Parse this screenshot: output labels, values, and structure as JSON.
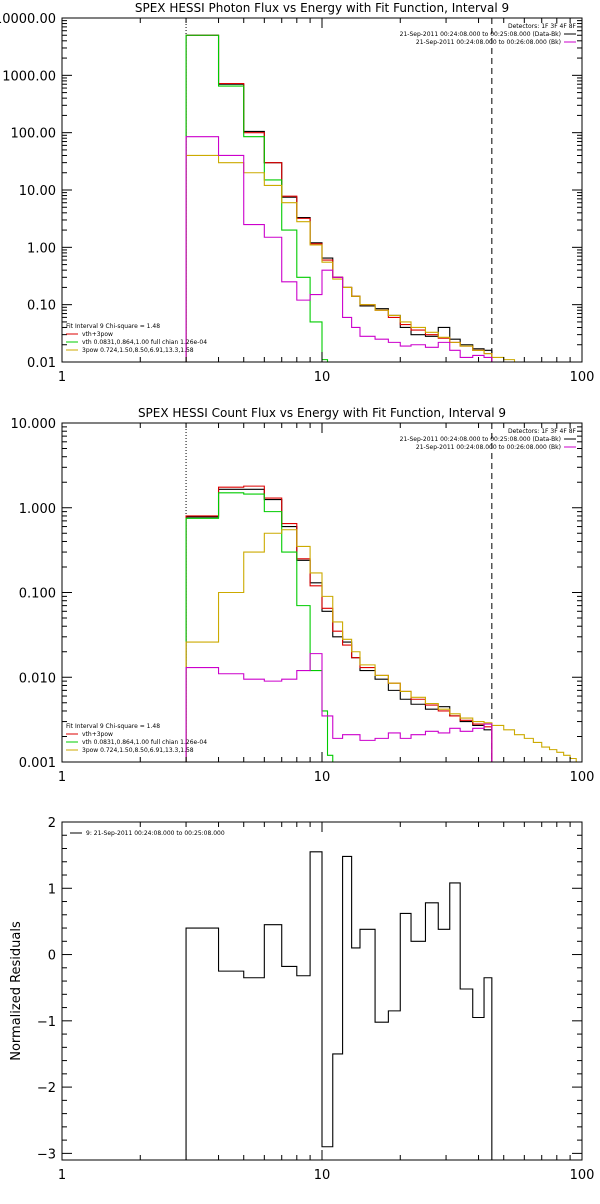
{
  "chart_data": [
    {
      "type": "line",
      "title": "SPEX HESSI Photon Flux vs Energy with Fit Function, Interval 9",
      "xlabel": "",
      "ylabel": "",
      "xscale": "log",
      "yscale": "log",
      "xlim": [
        1,
        100
      ],
      "ylim": [
        0.01,
        10000
      ],
      "xtick_labels": [
        {
          "v": 1,
          "t": "1"
        },
        {
          "v": 10,
          "t": "10"
        },
        {
          "v": 100,
          "t": "100"
        }
      ],
      "ytick_labels": [
        {
          "v": 0.01,
          "t": "0.01"
        },
        {
          "v": 0.1,
          "t": "0.10"
        },
        {
          "v": 1,
          "t": "1.00"
        },
        {
          "v": 10,
          "t": "10.00"
        },
        {
          "v": 100,
          "t": "100.00"
        },
        {
          "v": 1000,
          "t": "1000.00"
        },
        {
          "v": 10000,
          "t": "10000.00"
        }
      ],
      "vlines": [
        {
          "x": 3,
          "style": "dotted"
        },
        {
          "x": 45,
          "style": "dashed"
        }
      ],
      "legend_top": {
        "position": "top-right",
        "header": "Detectors: 1F 3F 4F 8F",
        "entries": [
          {
            "text": "21-Sep-2011 00:24:08.000 to 00:25:08.000 (Data-Bk)",
            "color": "#000000"
          },
          {
            "text": "21-Sep-2011 00:24:08.000 to 00:26:08.000 (Bk)",
            "color": "#cc00cc"
          }
        ]
      },
      "legend_bottom": {
        "position": "bottom-left",
        "header": "Fit Interval 9   Chi-square = 1.48",
        "entries": [
          {
            "text": "vth+3pow",
            "color": "#dd0000"
          },
          {
            "text": "vth 0.0831,0.864,1.00  full chian 1.26e-04",
            "color": "#00cc00"
          },
          {
            "text": "3pow 0.724,1.50,8.50,6.91,13.3,1.58",
            "color": "#ccaa00"
          }
        ]
      },
      "series": [
        {
          "key": "data",
          "color": "#000000",
          "edges": [
            3,
            4,
            5,
            6,
            7,
            8,
            9,
            10,
            11,
            12,
            13,
            14,
            16,
            18,
            20,
            22,
            25,
            28,
            31,
            34,
            38,
            42,
            45
          ],
          "values": [
            5000,
            700,
            105,
            30,
            7.5,
            3.3,
            1.2,
            0.65,
            0.3,
            0.2,
            0.14,
            0.095,
            0.085,
            0.065,
            0.04,
            0.03,
            0.028,
            0.04,
            0.025,
            0.02,
            0.017,
            0.016
          ]
        },
        {
          "key": "model-total",
          "color": "#dd0000",
          "edges": [
            3,
            4,
            5,
            6,
            7,
            8,
            9,
            10,
            11,
            12,
            13,
            14,
            16,
            18,
            20,
            22,
            25,
            28,
            31,
            34,
            38,
            42,
            45
          ],
          "values": [
            5000,
            720,
            100,
            30,
            7.8,
            3.2,
            1.15,
            0.6,
            0.3,
            0.2,
            0.14,
            0.1,
            0.08,
            0.06,
            0.045,
            0.036,
            0.03,
            0.026,
            0.022,
            0.019,
            0.016,
            0.014
          ]
        },
        {
          "key": "model-thermal",
          "color": "#00cc00",
          "edges": [
            3,
            4,
            5,
            6,
            7,
            8,
            9,
            10,
            10.5
          ],
          "values": [
            5000,
            650,
            85,
            15,
            2,
            0.3,
            0.05,
            0.011
          ]
        },
        {
          "key": "model-powerlaw",
          "color": "#ccaa00",
          "edges": [
            3,
            4,
            5,
            6,
            7,
            8,
            9,
            10,
            11,
            12,
            13,
            14,
            16,
            18,
            20,
            22,
            25,
            28,
            31,
            34,
            38,
            42,
            45,
            50,
            55,
            60,
            65
          ],
          "values": [
            40,
            30,
            20,
            12,
            6,
            2.8,
            1.1,
            0.55,
            0.28,
            0.2,
            0.14,
            0.1,
            0.08,
            0.065,
            0.05,
            0.04,
            0.033,
            0.027,
            0.022,
            0.019,
            0.016,
            0.014,
            0.012,
            0.011,
            0.01,
            0.009
          ]
        },
        {
          "key": "background",
          "color": "#cc00cc",
          "edges": [
            3,
            4,
            5,
            6,
            7,
            8,
            9,
            10,
            11,
            12,
            13,
            14,
            16,
            18,
            20,
            22,
            25,
            28,
            31,
            34,
            38,
            42,
            45
          ],
          "values": [
            85,
            40,
            2.5,
            1.5,
            0.25,
            0.12,
            0.15,
            0.4,
            0.3,
            0.06,
            0.04,
            0.028,
            0.025,
            0.022,
            0.019,
            0.02,
            0.018,
            0.022,
            0.016,
            0.012,
            0.013,
            0.012
          ]
        }
      ]
    },
    {
      "type": "line",
      "title": "SPEX HESSI Count Flux vs Energy with Fit Function, Interval 9",
      "xlabel": "",
      "ylabel": "",
      "xscale": "log",
      "yscale": "log",
      "xlim": [
        1,
        100
      ],
      "ylim": [
        0.001,
        10
      ],
      "xtick_labels": [
        {
          "v": 1,
          "t": "1"
        },
        {
          "v": 10,
          "t": "10"
        },
        {
          "v": 100,
          "t": "100"
        }
      ],
      "ytick_labels": [
        {
          "v": 0.001,
          "t": "0.001"
        },
        {
          "v": 0.01,
          "t": "0.010"
        },
        {
          "v": 0.1,
          "t": "0.100"
        },
        {
          "v": 1,
          "t": "1.000"
        },
        {
          "v": 10,
          "t": "10.000"
        }
      ],
      "vlines": [
        {
          "x": 3,
          "style": "dotted"
        },
        {
          "x": 45,
          "style": "dashed"
        }
      ],
      "legend_top": {
        "position": "top-right",
        "header": "Detectors: 1F 3F 4F 8F",
        "entries": [
          {
            "text": "21-Sep-2011 00:24:08.000 to 00:25:08.000 (Data-Bk)",
            "color": "#000000"
          },
          {
            "text": "21-Sep-2011 00:24:08.000 to 00:26:08.000 (Bk)",
            "color": "#cc00cc"
          }
        ]
      },
      "legend_bottom": {
        "position": "bottom-left",
        "header": "Fit Interval 9   Chi-square = 1.48",
        "entries": [
          {
            "text": "vth+3pow",
            "color": "#dd0000"
          },
          {
            "text": "vth 0.0831,0.864,1.00  full chian 1.26e-04",
            "color": "#00cc00"
          },
          {
            "text": "3pow 0.724,1.50,8.50,6.91,13.3,1.58",
            "color": "#ccaa00"
          }
        ]
      },
      "series": [
        {
          "key": "data",
          "color": "#000000",
          "edges": [
            3,
            4,
            5,
            6,
            7,
            8,
            9,
            10,
            11,
            12,
            13,
            14,
            16,
            18,
            20,
            22,
            25,
            28,
            31,
            34,
            38,
            42,
            45
          ],
          "values": [
            0.78,
            1.65,
            1.65,
            1.25,
            0.6,
            0.24,
            0.13,
            0.06,
            0.03,
            0.026,
            0.017,
            0.012,
            0.0095,
            0.007,
            0.0055,
            0.0048,
            0.0042,
            0.0045,
            0.0035,
            0.003,
            0.0027,
            0.0024
          ]
        },
        {
          "key": "model-total",
          "color": "#dd0000",
          "edges": [
            3,
            4,
            5,
            6,
            7,
            8,
            9,
            10,
            11,
            12,
            13,
            14,
            16,
            18,
            20,
            22,
            25,
            28,
            31,
            34,
            38,
            42,
            45
          ],
          "values": [
            0.8,
            1.75,
            1.8,
            1.3,
            0.65,
            0.25,
            0.12,
            0.065,
            0.035,
            0.024,
            0.017,
            0.013,
            0.0105,
            0.0085,
            0.0068,
            0.0055,
            0.0047,
            0.004,
            0.0035,
            0.0031,
            0.0028,
            0.0026
          ]
        },
        {
          "key": "model-thermal",
          "color": "#00cc00",
          "edges": [
            3,
            4,
            5,
            6,
            7,
            8,
            9,
            10,
            10.5,
            11
          ],
          "values": [
            0.75,
            1.5,
            1.45,
            0.9,
            0.3,
            0.07,
            0.012,
            0.004,
            0.0012
          ]
        },
        {
          "key": "model-powerlaw",
          "color": "#ccaa00",
          "edges": [
            3,
            4,
            5,
            6,
            7,
            8,
            9,
            10,
            11,
            12,
            13,
            14,
            16,
            18,
            20,
            22,
            25,
            28,
            31,
            34,
            38,
            42,
            45,
            50,
            55,
            60,
            65,
            70,
            75,
            80,
            85,
            90,
            95,
            100
          ],
          "values": [
            0.026,
            0.1,
            0.3,
            0.5,
            0.55,
            0.35,
            0.17,
            0.09,
            0.045,
            0.028,
            0.02,
            0.014,
            0.0105,
            0.0085,
            0.0068,
            0.0058,
            0.0049,
            0.0042,
            0.0037,
            0.0033,
            0.003,
            0.0029,
            0.0027,
            0.0024,
            0.0021,
            0.0019,
            0.0017,
            0.0015,
            0.0014,
            0.0013,
            0.0012,
            0.0011,
            0.001
          ]
        },
        {
          "key": "background",
          "color": "#cc00cc",
          "edges": [
            3,
            4,
            5,
            6,
            7,
            8,
            9,
            10,
            11,
            12,
            13,
            14,
            16,
            18,
            20,
            22,
            25,
            28,
            31,
            34,
            38,
            42,
            45
          ],
          "values": [
            0.013,
            0.011,
            0.0095,
            0.009,
            0.0095,
            0.012,
            0.019,
            0.0035,
            0.0019,
            0.0021,
            0.0021,
            0.0018,
            0.0019,
            0.0022,
            0.0019,
            0.0021,
            0.0023,
            0.0022,
            0.0025,
            0.0023,
            0.0025,
            0.0028
          ]
        }
      ]
    },
    {
      "type": "line",
      "title": "",
      "xlabel": "",
      "ylabel": "Normalized Residuals",
      "xscale": "log",
      "yscale": "linear",
      "xlim": [
        1,
        100
      ],
      "ylim": [
        -3.1,
        2
      ],
      "xtick_labels": [
        {
          "v": 1,
          "t": "1"
        },
        {
          "v": 10,
          "t": "10"
        },
        {
          "v": 100,
          "t": "100"
        }
      ],
      "ytick_labels": [
        {
          "v": -3,
          "t": "−3"
        },
        {
          "v": -2,
          "t": "−2"
        },
        {
          "v": -1,
          "t": "−1"
        },
        {
          "v": 0,
          "t": "0"
        },
        {
          "v": 1,
          "t": "1"
        },
        {
          "v": 2,
          "t": "2"
        }
      ],
      "legend_top": {
        "position": "top-left",
        "header": "",
        "entries": [
          {
            "text": "9: 21-Sep-2011 00:24:08.000 to 00:25:08.000",
            "color": "#000000"
          }
        ]
      },
      "series": [
        {
          "key": "residuals",
          "color": "#000000",
          "edges": [
            3,
            4,
            5,
            6,
            7,
            8,
            9,
            10,
            11,
            12,
            13,
            14,
            16,
            18,
            20,
            22,
            25,
            28,
            31,
            34,
            38,
            42,
            45
          ],
          "values": [
            0.4,
            -0.25,
            -0.35,
            0.45,
            -0.18,
            -0.32,
            1.55,
            -2.9,
            -1.5,
            1.48,
            0.1,
            0.38,
            -1.02,
            -0.85,
            0.62,
            0.2,
            0.78,
            0.38,
            1.08,
            -0.52,
            -0.95,
            -0.35
          ]
        }
      ]
    }
  ]
}
